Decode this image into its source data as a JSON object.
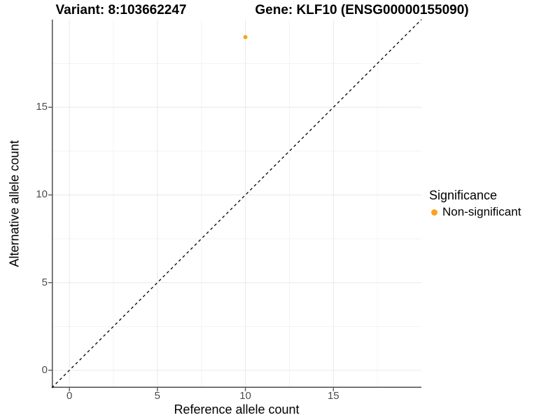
{
  "header": {
    "variant_title": "Variant: 8:103662247",
    "gene_title": "Gene: KLF10 (ENSG00000155090)"
  },
  "chart_data": {
    "type": "scatter",
    "xlabel": "Reference allele count",
    "ylabel": "Alternative allele count",
    "xlim": [
      -1,
      20
    ],
    "ylim": [
      -1,
      20
    ],
    "x_ticks": {
      "values": [
        0,
        5,
        10,
        15
      ],
      "labels": [
        "0",
        "5",
        "10",
        "15"
      ]
    },
    "y_ticks": {
      "values": [
        0,
        5,
        10,
        15
      ],
      "labels": [
        "0",
        "5",
        "10",
        "15"
      ]
    },
    "x_minor": [
      2.5,
      7.5,
      12.5,
      17.5
    ],
    "y_minor": [
      2.5,
      7.5,
      12.5,
      17.5
    ],
    "grid": true,
    "reference_line": {
      "type": "identity",
      "style": "dashed",
      "from": [
        -1,
        -1
      ],
      "to": [
        20,
        20
      ]
    },
    "series": [
      {
        "name": "Non-significant",
        "color": "#F9A322",
        "points": [
          {
            "x": 10,
            "y": 19
          }
        ]
      }
    ]
  },
  "legend": {
    "title": "Significance",
    "position": "right",
    "items": [
      {
        "label": "Non-significant",
        "color": "#F9A322",
        "marker": "circle-icon"
      }
    ]
  },
  "style": {
    "background": "#ffffff",
    "axis_line_color": "#4d4d4d",
    "tick_mark_color": "#666666",
    "grid_major_color": "#e8e8e8",
    "grid_minor_color": "#f3f3f3",
    "tick_label_color": "#4d4d4d",
    "dashed_line_color": "#000000"
  }
}
